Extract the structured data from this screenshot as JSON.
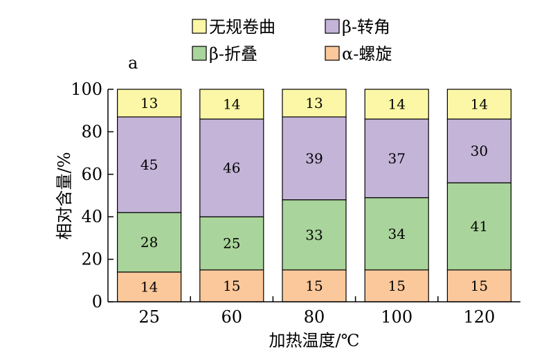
{
  "chart_data": {
    "type": "bar",
    "stacked": true,
    "panel_label": "a",
    "categories": [
      "25",
      "60",
      "80",
      "100",
      "120"
    ],
    "series": [
      {
        "name": "α-螺旋",
        "color": "#fbc89b",
        "values": [
          14,
          15,
          15,
          15,
          15
        ]
      },
      {
        "name": "β-折叠",
        "color": "#a9d49b",
        "values": [
          28,
          25,
          33,
          34,
          41
        ]
      },
      {
        "name": "β-转角",
        "color": "#c4b4d8",
        "values": [
          45,
          46,
          39,
          37,
          30
        ]
      },
      {
        "name": "无规卷曲",
        "color": "#fbf7a6",
        "values": [
          13,
          14,
          13,
          14,
          14
        ]
      }
    ],
    "segment_labels": [
      [
        "14",
        "15",
        "15",
        "15",
        "15"
      ],
      [
        "28",
        "25",
        "33",
        "34",
        "41"
      ],
      [
        "45",
        "46",
        "39",
        "37",
        "30"
      ],
      [
        "13",
        "14",
        "13",
        "14",
        "14"
      ]
    ],
    "xlabel": "加热温度/℃",
    "ylabel": "相对含量/%",
    "ylim": [
      0,
      100
    ],
    "yticks": [
      "0",
      "20",
      "40",
      "60",
      "80",
      "100"
    ],
    "legend": {
      "rows": [
        [
          {
            "label": "无规卷曲",
            "series": 3
          },
          {
            "label": "β-转角",
            "series": 2
          }
        ],
        [
          {
            "label": "β-折叠",
            "series": 1
          },
          {
            "label": "α-螺旋",
            "series": 0
          }
        ]
      ],
      "placement": "top"
    },
    "grid": false
  }
}
